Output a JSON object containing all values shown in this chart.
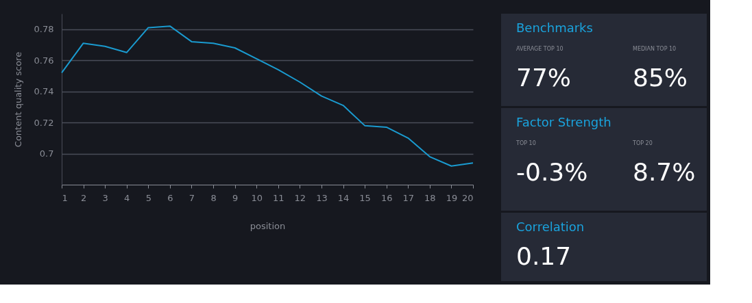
{
  "chart_data": [
    {
      "type": "line",
      "xlabel": "position",
      "ylabel": "Content quality score",
      "x": [
        1,
        2,
        3,
        4,
        5,
        6,
        7,
        8,
        9,
        10,
        11,
        12,
        13,
        14,
        15,
        16,
        17,
        18,
        19,
        20
      ],
      "series": [
        {
          "color": "#1a9bd0",
          "values": [
            0.752,
            0.771,
            0.769,
            0.765,
            0.781,
            0.782,
            0.772,
            0.771,
            0.768,
            0.761,
            0.754,
            0.746,
            0.737,
            0.731,
            0.718,
            0.717,
            0.71,
            0.698,
            0.692,
            0.694
          ]
        }
      ],
      "xlim": [
        1,
        20
      ],
      "xticks": [
        1,
        2,
        3,
        4,
        5,
        6,
        7,
        8,
        9,
        10,
        11,
        12,
        13,
        14,
        15,
        16,
        17,
        18,
        19,
        20
      ],
      "ylim": [
        0.68,
        0.79
      ],
      "yticks": [
        {
          "value": 0.7,
          "label": "0.7"
        },
        0.72,
        0.74,
        0.76,
        0.78
      ],
      "grid": "y",
      "marker": "none",
      "line_style": "solid"
    },
    {
      "type": "other",
      "title": "Benchmarks",
      "annotations": [
        "AVERAGE TOP 10",
        "77%",
        "MEDIAN TOP 10",
        "85%"
      ]
    },
    {
      "type": "other",
      "title": "Factor Strength",
      "annotations": [
        "TOP 10",
        "-0.3%",
        "TOP 20",
        "8.7%"
      ]
    },
    {
      "type": "other",
      "title": "Correlation",
      "annotations": [
        "0.17"
      ]
    }
  ]
}
